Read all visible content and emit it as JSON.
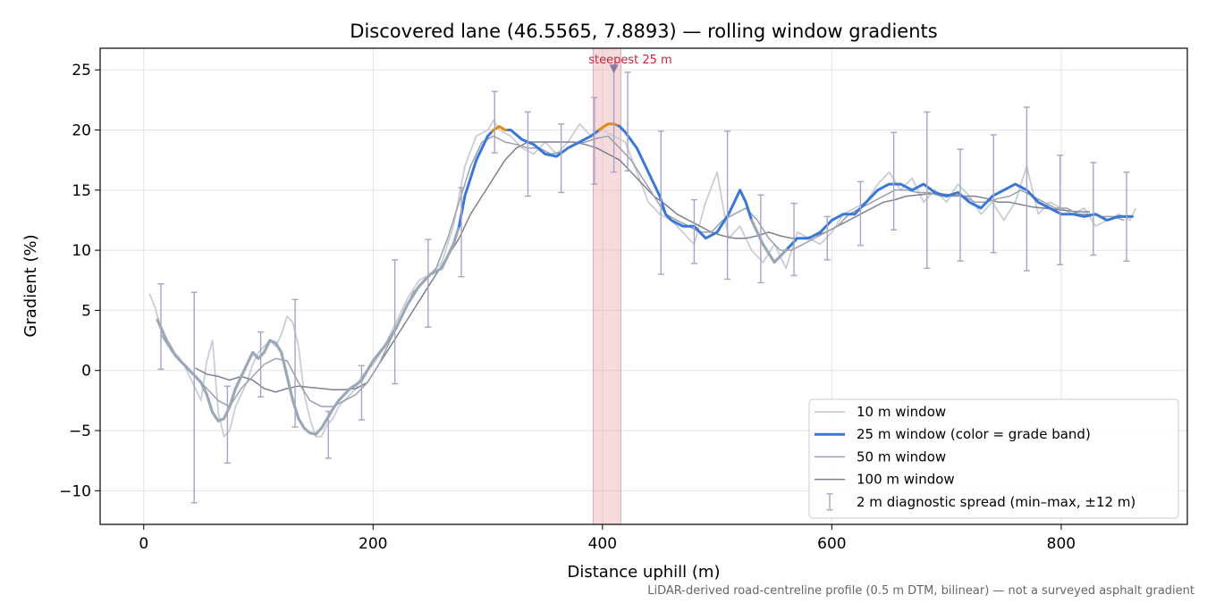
{
  "chart_data": {
    "type": "line",
    "title": "Discovered lane (46.5565, 7.8893) — rolling window gradients",
    "xlabel": "Distance uphill (m)",
    "ylabel": "Gradient (%)",
    "xlim": [
      -38,
      910
    ],
    "ylim": [
      -12.8,
      26.8
    ],
    "x_ticks": [
      0,
      200,
      400,
      600,
      800
    ],
    "y_ticks": [
      -10,
      -5,
      0,
      5,
      10,
      15,
      20,
      25
    ],
    "x_tick_labels": [
      "0",
      "200",
      "400",
      "600",
      "800"
    ],
    "y_tick_labels": [
      "−10",
      "−5",
      "0",
      "5",
      "10",
      "15",
      "20",
      "25"
    ],
    "grid": true,
    "legend_placement": "lower-right",
    "footnote": "LiDAR-derived road-centreline profile (0.5 m DTM, bilinear) — not a surveyed asphalt gradient",
    "highlight": {
      "x_start": 392,
      "x_end": 416,
      "label": "steepest 25 m",
      "marker_x": 410,
      "marker_y": 25
    },
    "colors": {
      "w10": "#c8ced8",
      "w25_blue": "#3a78d8",
      "w25_gray": "#9aa8b8",
      "w25_orange": "#e08a10",
      "w50": "#9aa0ad",
      "w100": "#7d8290",
      "spread": "#a9a3c4",
      "highlight": "#e8a6ac",
      "marker": "#8a7aa0"
    },
    "series": [
      {
        "name": "10 m window",
        "x": [
          5,
          10,
          15,
          20,
          25,
          30,
          35,
          40,
          45,
          50,
          55,
          60,
          65,
          70,
          75,
          80,
          85,
          90,
          95,
          100,
          105,
          110,
          115,
          120,
          125,
          130,
          135,
          140,
          145,
          150,
          155,
          160,
          165,
          170,
          175,
          180,
          185,
          190,
          195,
          200,
          210,
          220,
          230,
          240,
          250,
          260,
          270,
          280,
          290,
          300,
          305,
          310,
          320,
          330,
          340,
          345,
          350,
          360,
          370,
          380,
          390,
          400,
          410,
          420,
          430,
          440,
          450,
          460,
          470,
          480,
          490,
          500,
          510,
          520,
          530,
          540,
          550,
          560,
          570,
          580,
          590,
          600,
          610,
          620,
          630,
          640,
          650,
          660,
          670,
          680,
          690,
          700,
          710,
          720,
          730,
          740,
          750,
          760,
          770,
          780,
          790,
          800,
          810,
          820,
          830,
          840,
          850,
          860,
          865
        ],
        "y": [
          6.4,
          5.2,
          3.5,
          2.5,
          1.5,
          1.2,
          0.5,
          -0.5,
          -1.5,
          -2.5,
          0.8,
          2.5,
          -3.5,
          -5.5,
          -5.0,
          -3.0,
          -2.0,
          -1.0,
          0.5,
          1.5,
          2.0,
          2.5,
          2.0,
          3.0,
          4.5,
          4.0,
          2.0,
          -2.0,
          -4.0,
          -5.5,
          -5.5,
          -4.5,
          -4.0,
          -3.0,
          -2.5,
          -2.0,
          -1.5,
          -0.5,
          0.0,
          0.5,
          2.0,
          4.0,
          6.0,
          7.5,
          8.0,
          9.0,
          12.0,
          17.0,
          19.5,
          20.0,
          20.8,
          20.0,
          19.5,
          18.5,
          18.0,
          18.5,
          19.0,
          18.0,
          19.0,
          20.5,
          19.5,
          20.0,
          19.5,
          19.0,
          16.5,
          14.0,
          13.0,
          12.5,
          11.5,
          10.5,
          14.0,
          16.5,
          11.0,
          12.0,
          10.0,
          9.0,
          10.5,
          8.5,
          11.5,
          11.0,
          10.5,
          11.5,
          13.0,
          13.5,
          14.0,
          15.5,
          16.5,
          15.0,
          16.0,
          14.0,
          15.0,
          14.0,
          15.5,
          14.5,
          13.0,
          14.0,
          12.5,
          14.0,
          17.0,
          13.0,
          14.0,
          13.5,
          13.0,
          13.5,
          12.0,
          12.5,
          13.0,
          12.5,
          13.5
        ]
      },
      {
        "name": "25 m window (color = grade band)",
        "x": [
          12,
          20,
          28,
          35,
          40,
          45,
          50,
          55,
          60,
          65,
          70,
          75,
          80,
          85,
          90,
          95,
          100,
          105,
          110,
          115,
          120,
          125,
          130,
          135,
          140,
          145,
          150,
          155,
          160,
          165,
          170,
          175,
          180,
          185,
          190,
          195,
          200,
          210,
          220,
          230,
          240,
          250,
          260,
          270,
          275,
          280,
          290,
          300,
          305,
          310,
          315,
          320,
          330,
          340,
          350,
          360,
          370,
          380,
          390,
          400,
          405,
          410,
          415,
          420,
          430,
          440,
          450,
          455,
          460,
          470,
          480,
          490,
          500,
          510,
          520,
          525,
          530,
          540,
          550,
          560,
          570,
          580,
          590,
          600,
          610,
          620,
          630,
          640,
          650,
          660,
          670,
          680,
          690,
          700,
          710,
          720,
          730,
          740,
          750,
          760,
          770,
          780,
          790,
          800,
          810,
          820,
          830,
          840,
          850,
          860
        ],
        "y": [
          4.2,
          2.5,
          1.2,
          0.5,
          0.0,
          -0.5,
          -1.0,
          -2.0,
          -3.5,
          -4.2,
          -4.0,
          -3.0,
          -1.5,
          -0.5,
          0.5,
          1.5,
          1.0,
          1.5,
          2.5,
          2.3,
          1.5,
          -0.5,
          -2.5,
          -4.0,
          -4.8,
          -5.2,
          -5.3,
          -4.8,
          -4.0,
          -3.2,
          -2.5,
          -2.0,
          -1.5,
          -1.2,
          -0.8,
          0.0,
          0.8,
          2.0,
          3.5,
          5.5,
          7.0,
          8.0,
          8.5,
          10.5,
          12.0,
          14.5,
          17.5,
          19.5,
          20.0,
          20.3,
          20.0,
          20.0,
          19.2,
          18.8,
          18.0,
          17.8,
          18.5,
          19.0,
          19.5,
          20.2,
          20.5,
          20.5,
          20.3,
          19.8,
          18.5,
          16.5,
          14.5,
          13.0,
          12.5,
          12.0,
          12.0,
          11.0,
          11.5,
          13.0,
          15.0,
          14.0,
          12.5,
          10.5,
          9.0,
          10.0,
          11.0,
          11.0,
          11.5,
          12.5,
          13.0,
          13.0,
          14.0,
          15.0,
          15.5,
          15.5,
          15.0,
          15.5,
          14.8,
          14.5,
          14.8,
          14.0,
          13.5,
          14.5,
          15.0,
          15.5,
          15.0,
          14.0,
          13.5,
          13.0,
          13.0,
          12.8,
          13.0,
          12.5,
          12.8,
          12.8
        ],
        "band_colors": [
          {
            "x_start": 12,
            "x_end": 275,
            "color": "gray"
          },
          {
            "x_start": 275,
            "x_end": 304,
            "color": "blue"
          },
          {
            "x_start": 304,
            "x_end": 318,
            "color": "orange"
          },
          {
            "x_start": 318,
            "x_end": 397,
            "color": "blue"
          },
          {
            "x_start": 397,
            "x_end": 414,
            "color": "orange"
          },
          {
            "x_start": 414,
            "x_end": 530,
            "color": "blue"
          },
          {
            "x_start": 530,
            "x_end": 562,
            "color": "gray"
          },
          {
            "x_start": 562,
            "x_end": 862,
            "color": "blue"
          }
        ]
      },
      {
        "name": "50 m window",
        "x": [
          15,
          25,
          35,
          45,
          55,
          65,
          75,
          85,
          95,
          105,
          115,
          125,
          135,
          145,
          155,
          165,
          175,
          185,
          195,
          205,
          215,
          225,
          235,
          245,
          255,
          265,
          275,
          285,
          295,
          305,
          315,
          325,
          335,
          345,
          355,
          365,
          375,
          385,
          395,
          405,
          415,
          425,
          435,
          445,
          455,
          465,
          475,
          485,
          495,
          505,
          515,
          525,
          535,
          545,
          555,
          565,
          575,
          585,
          595,
          605,
          615,
          625,
          635,
          645,
          655,
          665,
          675,
          685,
          695,
          705,
          715,
          725,
          735,
          745,
          755,
          765,
          775,
          785,
          795,
          805,
          815,
          825,
          835,
          845,
          855
        ],
        "y": [
          3.0,
          1.5,
          0.5,
          -0.5,
          -1.5,
          -2.5,
          -3.0,
          -1.5,
          -0.5,
          0.5,
          1.0,
          0.8,
          -1.0,
          -2.5,
          -3.0,
          -3.0,
          -2.5,
          -2.0,
          -1.0,
          0.5,
          2.5,
          4.5,
          6.5,
          7.5,
          8.5,
          11.0,
          14.0,
          17.0,
          19.0,
          19.5,
          19.0,
          18.8,
          18.5,
          18.5,
          18.0,
          18.2,
          18.8,
          19.0,
          19.3,
          19.5,
          18.5,
          17.5,
          16.0,
          14.5,
          13.0,
          12.5,
          12.0,
          11.5,
          11.5,
          12.5,
          13.0,
          13.5,
          12.5,
          11.0,
          10.0,
          10.0,
          10.5,
          11.0,
          11.5,
          12.0,
          13.0,
          13.5,
          14.0,
          14.5,
          15.0,
          15.0,
          14.8,
          14.8,
          14.5,
          14.5,
          14.5,
          14.0,
          14.0,
          14.3,
          14.5,
          15.0,
          14.5,
          14.0,
          13.5,
          13.5,
          13.0,
          13.0,
          12.8,
          12.8,
          12.5
        ]
      },
      {
        "name": "100 m window",
        "x": [
          45,
          55,
          65,
          75,
          85,
          95,
          105,
          115,
          125,
          135,
          145,
          155,
          165,
          175,
          185,
          195,
          205,
          215,
          225,
          235,
          245,
          255,
          265,
          275,
          285,
          295,
          305,
          315,
          325,
          335,
          345,
          355,
          365,
          375,
          385,
          395,
          405,
          415,
          425,
          435,
          445,
          455,
          465,
          475,
          485,
          495,
          505,
          515,
          525,
          535,
          545,
          555,
          565,
          575,
          585,
          595,
          605,
          615,
          625,
          635,
          645,
          655,
          665,
          675,
          685,
          695,
          705,
          715,
          725,
          735,
          745,
          755,
          765,
          775,
          785,
          795,
          805,
          815,
          825
        ],
        "y": [
          0.2,
          -0.3,
          -0.5,
          -0.8,
          -0.5,
          -0.8,
          -1.5,
          -1.8,
          -1.5,
          -1.3,
          -1.4,
          -1.5,
          -1.6,
          -1.6,
          -1.5,
          -1.0,
          0.5,
          2.0,
          3.5,
          5.0,
          6.5,
          8.0,
          9.5,
          11.0,
          13.0,
          14.5,
          16.0,
          17.5,
          18.5,
          19.0,
          19.0,
          19.0,
          19.0,
          19.0,
          18.8,
          18.5,
          18.0,
          17.5,
          16.5,
          15.5,
          14.5,
          13.8,
          13.0,
          12.5,
          12.0,
          11.5,
          11.2,
          11.0,
          11.0,
          11.2,
          11.5,
          11.2,
          11.0,
          11.0,
          11.2,
          11.5,
          12.0,
          12.5,
          13.0,
          13.5,
          14.0,
          14.2,
          14.5,
          14.6,
          14.7,
          14.7,
          14.6,
          14.5,
          14.5,
          14.3,
          14.0,
          14.0,
          13.8,
          13.6,
          13.5,
          13.4,
          13.3,
          13.2,
          13.2
        ]
      },
      {
        "name": "2 m diagnostic spread (min–max, ±12 m)",
        "type": "errorbar",
        "points": [
          {
            "x": 15,
            "low": 0.1,
            "high": 7.2
          },
          {
            "x": 44,
            "low": -11.0,
            "high": 6.5
          },
          {
            "x": 73,
            "low": -7.7,
            "high": -1.3
          },
          {
            "x": 102,
            "low": -2.2,
            "high": 3.2
          },
          {
            "x": 132,
            "low": -4.7,
            "high": 5.9
          },
          {
            "x": 161,
            "low": -7.3,
            "high": -3.4
          },
          {
            "x": 190,
            "low": -4.1,
            "high": 0.4
          },
          {
            "x": 219,
            "low": -1.1,
            "high": 9.2
          },
          {
            "x": 248,
            "low": 3.6,
            "high": 10.9
          },
          {
            "x": 277,
            "low": 7.8,
            "high": 15.2
          },
          {
            "x": 306,
            "low": 18.1,
            "high": 23.2
          },
          {
            "x": 335,
            "low": 14.5,
            "high": 21.5
          },
          {
            "x": 364,
            "low": 14.8,
            "high": 20.5
          },
          {
            "x": 393,
            "low": 15.5,
            "high": 22.7
          },
          {
            "x": 410,
            "low": 16.5,
            "high": 25.2
          },
          {
            "x": 422,
            "low": 16.6,
            "high": 24.8
          },
          {
            "x": 451,
            "low": 8.0,
            "high": 19.9
          },
          {
            "x": 480,
            "low": 8.9,
            "high": 14.2
          },
          {
            "x": 509,
            "low": 7.6,
            "high": 19.9
          },
          {
            "x": 538,
            "low": 7.3,
            "high": 14.6
          },
          {
            "x": 567,
            "low": 7.9,
            "high": 13.9
          },
          {
            "x": 596,
            "low": 9.2,
            "high": 12.8
          },
          {
            "x": 625,
            "low": 10.4,
            "high": 15.7
          },
          {
            "x": 654,
            "low": 11.7,
            "high": 19.8
          },
          {
            "x": 683,
            "low": 8.5,
            "high": 21.5
          },
          {
            "x": 712,
            "low": 9.1,
            "high": 18.4
          },
          {
            "x": 741,
            "low": 9.8,
            "high": 19.6
          },
          {
            "x": 770,
            "low": 8.3,
            "high": 21.9
          },
          {
            "x": 799,
            "low": 8.8,
            "high": 17.9
          },
          {
            "x": 828,
            "low": 9.6,
            "high": 17.3
          },
          {
            "x": 857,
            "low": 9.1,
            "high": 16.5
          }
        ]
      }
    ]
  }
}
